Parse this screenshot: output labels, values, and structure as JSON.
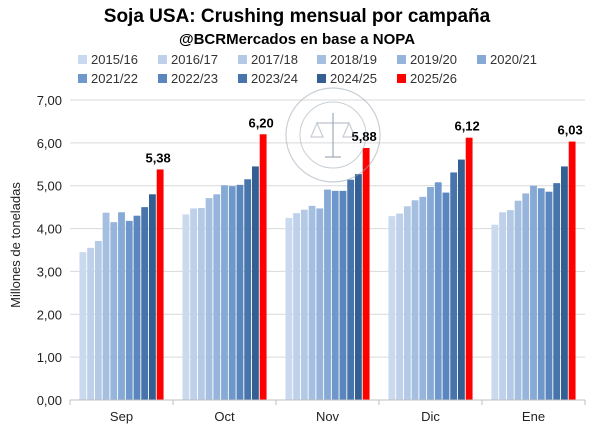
{
  "chart_data": {
    "type": "bar",
    "title": "Soja USA: Crushing mensual por campaña",
    "subtitle": "@BCRMercados en base a NOPA",
    "ylabel": "Millones de toneladas",
    "xlabel": "",
    "ylim": [
      0,
      7
    ],
    "yticks": [
      "0,00",
      "1,00",
      "2,00",
      "3,00",
      "4,00",
      "5,00",
      "6,00",
      "7,00"
    ],
    "grid": true,
    "legend_position": "top",
    "categories": [
      "Sep",
      "Oct",
      "Nov",
      "Dic",
      "Ene"
    ],
    "series": [
      {
        "name": "2015/16",
        "color": "#c9d9ee",
        "values": [
          3.45,
          4.33,
          4.25,
          4.29,
          4.09
        ]
      },
      {
        "name": "2016/17",
        "color": "#bfd1ea",
        "values": [
          3.55,
          4.47,
          4.36,
          4.35,
          4.38
        ]
      },
      {
        "name": "2017/18",
        "color": "#b3c9e6",
        "values": [
          3.71,
          4.48,
          4.44,
          4.52,
          4.43
        ]
      },
      {
        "name": "2018/19",
        "color": "#a5bfe1",
        "values": [
          4.37,
          4.71,
          4.53,
          4.66,
          4.65
        ]
      },
      {
        "name": "2019/20",
        "color": "#97b5dc",
        "values": [
          4.15,
          4.8,
          4.47,
          4.74,
          4.82
        ]
      },
      {
        "name": "2020/21",
        "color": "#86a9d6",
        "values": [
          4.38,
          5.01,
          4.91,
          4.97,
          5.0
        ]
      },
      {
        "name": "2021/22",
        "color": "#6e98cb",
        "values": [
          4.18,
          4.99,
          4.88,
          5.08,
          4.94
        ]
      },
      {
        "name": "2022/23",
        "color": "#5a86bd",
        "values": [
          4.3,
          5.02,
          4.88,
          4.84,
          4.86
        ]
      },
      {
        "name": "2023/24",
        "color": "#4674ab",
        "values": [
          4.5,
          5.15,
          5.14,
          5.31,
          5.06
        ]
      },
      {
        "name": "2024/25",
        "color": "#335f93",
        "values": [
          4.8,
          5.45,
          5.27,
          5.61,
          5.45
        ]
      },
      {
        "name": "2025/26",
        "color": "#ff0000",
        "values": [
          5.38,
          6.2,
          5.88,
          6.12,
          6.03
        ]
      }
    ],
    "data_labels": {
      "series": "2025/26",
      "labels": [
        "5,38",
        "6,20",
        "5,88",
        "6,12",
        "6,03"
      ]
    }
  }
}
